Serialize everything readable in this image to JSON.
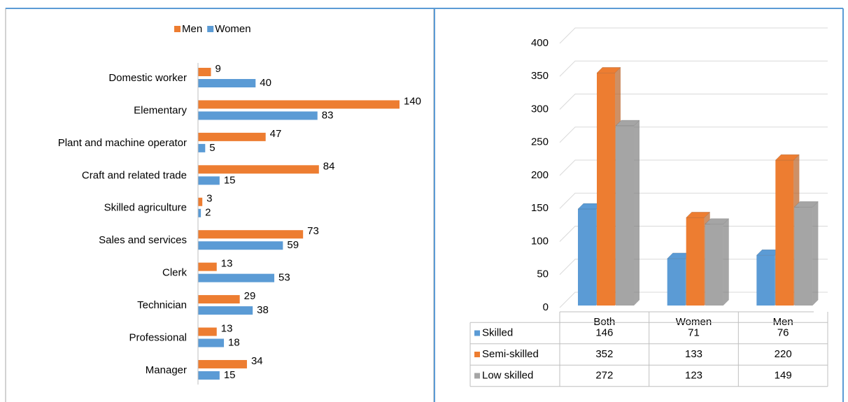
{
  "chart_data": [
    {
      "type": "hbar",
      "categories": [
        "Domestic worker",
        "Elementary",
        "Plant and machine operator",
        "Craft and related trade",
        "Skilled agriculture",
        "Sales and services",
        "Clerk",
        "Technician",
        "Professional",
        "Manager"
      ],
      "series": [
        {
          "name": "Men",
          "color": "#ed7d31",
          "values": [
            9,
            140,
            47,
            84,
            3,
            73,
            13,
            29,
            13,
            34
          ]
        },
        {
          "name": "Women",
          "color": "#5b9bd5",
          "values": [
            40,
            83,
            5,
            15,
            2,
            59,
            53,
            38,
            18,
            15
          ]
        }
      ],
      "legend": "top"
    },
    {
      "type": "bar3d",
      "categories": [
        "Both",
        "Women",
        "Men"
      ],
      "series": [
        {
          "name": "Skilled",
          "color": "#5b9bd5",
          "values": [
            146,
            71,
            76
          ]
        },
        {
          "name": "Semi-skilled",
          "color": "#ed7d31",
          "values": [
            352,
            133,
            220
          ]
        },
        {
          "name": "Low skilled",
          "color": "#a5a5a5",
          "values": [
            272,
            123,
            149
          ]
        }
      ],
      "ylim": [
        0,
        400
      ],
      "yticks": [
        0,
        50,
        100,
        150,
        200,
        250,
        300,
        350,
        400
      ],
      "grid": true,
      "data_table": true
    }
  ]
}
